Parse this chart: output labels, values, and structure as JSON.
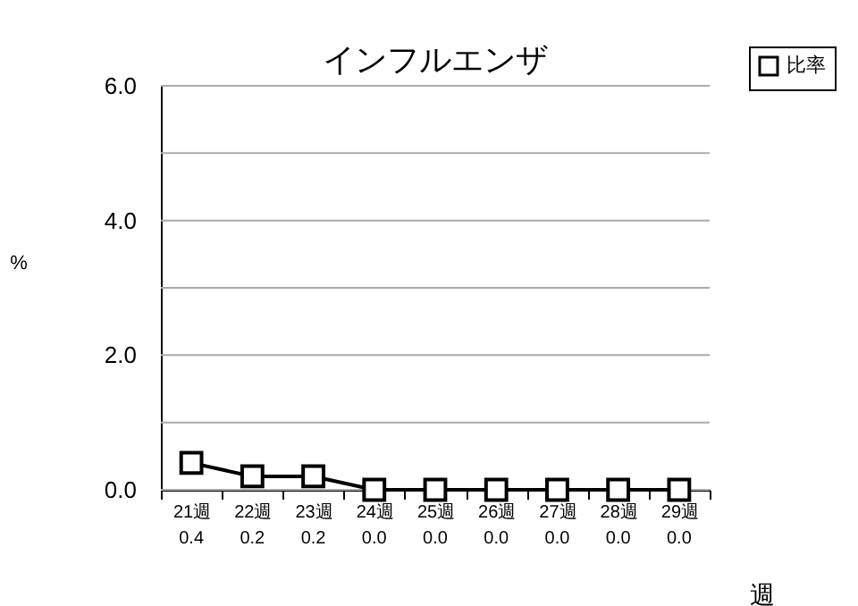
{
  "chart_data": {
    "type": "line",
    "title": "インフルエンザ",
    "xlabel": "週",
    "ylabel": "%",
    "categories": [
      "21週",
      "22週",
      "23週",
      "24週",
      "25週",
      "26週",
      "27週",
      "28週",
      "29週"
    ],
    "series": [
      {
        "name": "比率",
        "color": "#000000",
        "values": [
          0.4,
          0.2,
          0.2,
          0.0,
          0.0,
          0.0,
          0.0,
          0.0,
          0.0
        ],
        "value_labels": [
          "0.4",
          "0.2",
          "0.2",
          "0.0",
          "0.0",
          "0.0",
          "0.0",
          "0.0",
          "0.0"
        ]
      }
    ],
    "ylim": [
      0,
      6
    ],
    "yticks": [
      {
        "value": 0,
        "label": "0.0"
      },
      {
        "value": 1,
        "label": null
      },
      {
        "value": 2,
        "label": "2.0"
      },
      {
        "value": 3,
        "label": null
      },
      {
        "value": 4,
        "label": "4.0"
      },
      {
        "value": 5,
        "label": null
      },
      {
        "value": 6,
        "label": "6.0"
      }
    ],
    "grid": "y",
    "legend": "top right",
    "marker": "square",
    "line_style": "solid"
  }
}
